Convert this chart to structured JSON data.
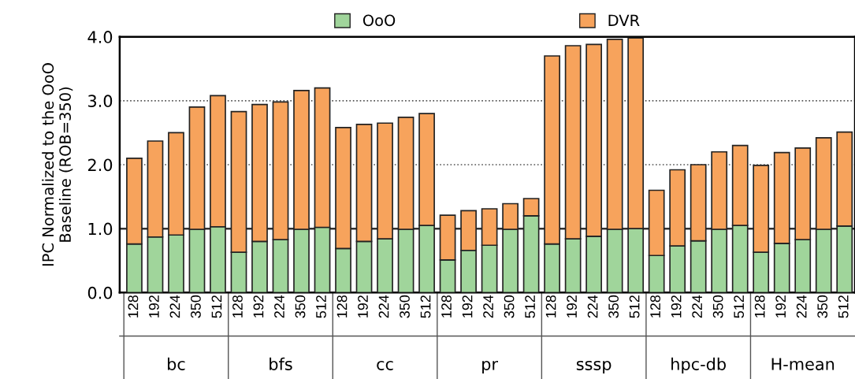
{
  "chart_data": {
    "type": "bar",
    "stacked": true,
    "ylabel": "IPC Normalized to the OoO\nBaseline (ROB=350)",
    "categories": [
      "128",
      "192",
      "224",
      "350",
      "512",
      "128",
      "192",
      "224",
      "350",
      "512",
      "128",
      "192",
      "224",
      "350",
      "512",
      "128",
      "192",
      "224",
      "350",
      "512",
      "128",
      "192",
      "224",
      "350",
      "512",
      "128",
      "192",
      "224",
      "350",
      "512",
      "128",
      "192",
      "224",
      "350",
      "512"
    ],
    "series": [
      {
        "name": "OoO",
        "color": "#a0d59b",
        "values": [
          0.76,
          0.87,
          0.9,
          0.99,
          1.03,
          0.63,
          0.8,
          0.83,
          0.99,
          1.02,
          0.69,
          0.8,
          0.84,
          0.99,
          1.05,
          0.51,
          0.66,
          0.74,
          0.99,
          1.2,
          0.76,
          0.84,
          0.88,
          0.99,
          1.0,
          0.58,
          0.73,
          0.81,
          0.99,
          1.05,
          0.63,
          0.77,
          0.83,
          0.99,
          1.04
        ]
      },
      {
        "name": "DVR",
        "color": "#f7a35c",
        "values": [
          1.34,
          1.5,
          1.6,
          1.91,
          2.05,
          2.2,
          2.14,
          2.15,
          2.17,
          2.18,
          1.89,
          1.83,
          1.81,
          1.75,
          1.75,
          0.7,
          0.62,
          0.57,
          0.4,
          0.27,
          2.94,
          3.02,
          3.0,
          2.97,
          2.98,
          1.02,
          1.19,
          1.19,
          1.21,
          1.25,
          1.36,
          1.42,
          1.43,
          1.43,
          1.47
        ]
      }
    ],
    "annotations": [
      "bc",
      "bfs",
      "cc",
      "pr",
      "sssp",
      "hpc-db",
      "H-mean"
    ],
    "ylim": [
      0,
      4
    ],
    "yticks": [
      {
        "value": 0,
        "label": "0.0"
      },
      {
        "value": 1,
        "label": "1.0"
      },
      {
        "value": 2,
        "label": "2.0"
      },
      {
        "value": 3,
        "label": "3.0"
      },
      {
        "value": 4,
        "label": "4.0"
      }
    ],
    "grid": "y",
    "line_style": "dotted",
    "legend": "top",
    "ref_lines": [
      {
        "axis": "y",
        "value": 1,
        "color": "#333333"
      }
    ]
  }
}
